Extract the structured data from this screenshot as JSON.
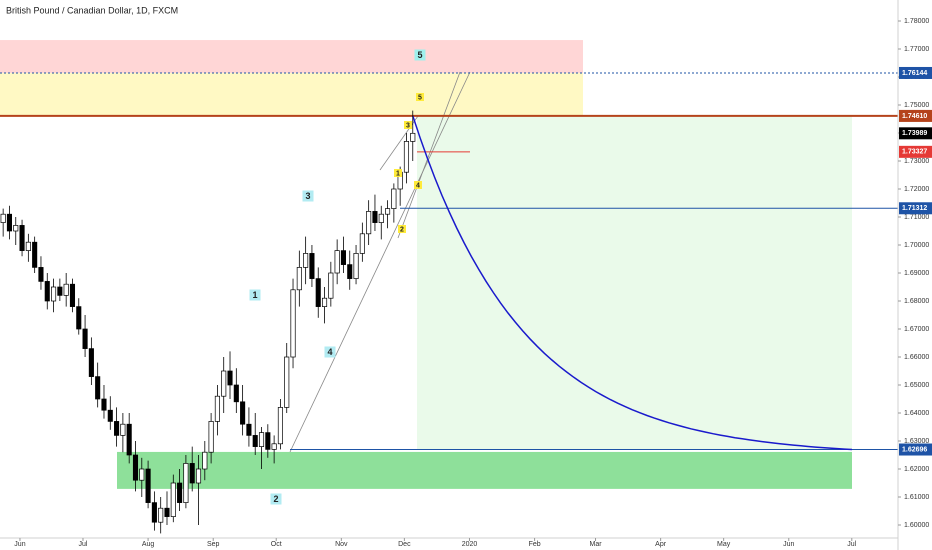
{
  "chart_data": {
    "type": "candlestick",
    "title": "British Pound / Canadian Dollar, 1D, FXCM",
    "x": [
      -8,
      -5,
      -2,
      1,
      4,
      7,
      10,
      13,
      16,
      19,
      22,
      25,
      28,
      31,
      34,
      37,
      40,
      43,
      46,
      49,
      52,
      55,
      58,
      61,
      64,
      67,
      70,
      73,
      76,
      79,
      82,
      85,
      88,
      91,
      94,
      97,
      100,
      103,
      106,
      109,
      112,
      115,
      118,
      121,
      124,
      127,
      130,
      133,
      136,
      139,
      142,
      145,
      148,
      151,
      154,
      157,
      160,
      163,
      166,
      169,
      172,
      175,
      178,
      181,
      184,
      187
    ],
    "open": [
      1.708,
      1.711,
      1.705,
      1.707,
      1.698,
      1.701,
      1.692,
      1.687,
      1.68,
      1.685,
      1.682,
      1.686,
      1.678,
      1.67,
      1.663,
      1.653,
      1.645,
      1.641,
      1.637,
      1.632,
      1.636,
      1.625,
      1.616,
      1.62,
      1.608,
      1.601,
      1.606,
      1.603,
      1.615,
      1.608,
      1.622,
      1.615,
      1.62,
      1.626,
      1.637,
      1.646,
      1.655,
      1.65,
      1.644,
      1.636,
      1.632,
      1.628,
      1.633,
      1.627,
      1.629,
      1.642,
      1.66,
      1.684,
      1.692,
      1.697,
      1.688,
      1.678,
      1.681,
      1.69,
      1.698,
      1.693,
      1.688,
      1.697,
      1.704,
      1.712,
      1.708,
      1.711,
      1.713,
      1.72,
      1.726,
      1.737
    ],
    "high": [
      1.713,
      1.714,
      1.71,
      1.709,
      1.704,
      1.703,
      1.696,
      1.69,
      1.688,
      1.688,
      1.69,
      1.688,
      1.681,
      1.675,
      1.667,
      1.658,
      1.65,
      1.646,
      1.642,
      1.64,
      1.64,
      1.63,
      1.624,
      1.623,
      1.612,
      1.61,
      1.612,
      1.618,
      1.62,
      1.625,
      1.628,
      1.625,
      1.63,
      1.64,
      1.65,
      1.66,
      1.662,
      1.656,
      1.65,
      1.642,
      1.64,
      1.635,
      1.636,
      1.632,
      1.645,
      1.665,
      1.688,
      1.698,
      1.703,
      1.7,
      1.692,
      1.685,
      1.694,
      1.702,
      1.703,
      1.698,
      1.7,
      1.708,
      1.716,
      1.718,
      1.714,
      1.716,
      1.722,
      1.728,
      1.74,
      1.748
    ],
    "low": [
      1.703,
      1.702,
      1.7,
      1.696,
      1.694,
      1.69,
      1.684,
      1.677,
      1.676,
      1.68,
      1.678,
      1.676,
      1.668,
      1.66,
      1.65,
      1.642,
      1.638,
      1.634,
      1.628,
      1.626,
      1.622,
      1.612,
      1.61,
      1.606,
      1.598,
      1.597,
      1.6,
      1.601,
      1.605,
      1.606,
      1.612,
      1.6,
      1.616,
      1.622,
      1.632,
      1.64,
      1.645,
      1.64,
      1.632,
      1.628,
      1.625,
      1.62,
      1.624,
      1.622,
      1.627,
      1.64,
      1.656,
      1.678,
      1.686,
      1.685,
      1.674,
      1.672,
      1.678,
      1.686,
      1.69,
      1.684,
      1.686,
      1.694,
      1.7,
      1.705,
      1.702,
      1.706,
      1.708,
      1.714,
      1.722,
      1.73
    ],
    "close": [
      1.711,
      1.705,
      1.707,
      1.698,
      1.701,
      1.692,
      1.687,
      1.68,
      1.685,
      1.682,
      1.686,
      1.678,
      1.67,
      1.663,
      1.653,
      1.645,
      1.641,
      1.637,
      1.632,
      1.636,
      1.625,
      1.616,
      1.62,
      1.608,
      1.601,
      1.606,
      1.603,
      1.615,
      1.608,
      1.622,
      1.615,
      1.62,
      1.626,
      1.637,
      1.646,
      1.655,
      1.65,
      1.644,
      1.636,
      1.632,
      1.628,
      1.633,
      1.627,
      1.629,
      1.642,
      1.66,
      1.684,
      1.692,
      1.697,
      1.688,
      1.678,
      1.681,
      1.69,
      1.698,
      1.693,
      1.688,
      1.697,
      1.704,
      1.712,
      1.708,
      1.711,
      1.713,
      1.72,
      1.726,
      1.737,
      1.73989
    ],
    "xlim": [
      -9.5,
      418
    ],
    "xticks": [
      {
        "value": 0,
        "label": "Jun"
      },
      {
        "value": 30,
        "label": "Jul"
      },
      {
        "value": 61,
        "label": "Aug"
      },
      {
        "value": 92,
        "label": "Sep"
      },
      {
        "value": 122,
        "label": "Oct"
      },
      {
        "value": 153,
        "label": "Nov"
      },
      {
        "value": 183,
        "label": "Dec"
      },
      {
        "value": 214,
        "label": "2020"
      },
      {
        "value": 245,
        "label": "Feb"
      },
      {
        "value": 274,
        "label": "Mar"
      },
      {
        "value": 305,
        "label": "Apr"
      },
      {
        "value": 335,
        "label": "May"
      },
      {
        "value": 366,
        "label": "Jun"
      },
      {
        "value": 396,
        "label": "Jul"
      }
    ],
    "ylim": [
      1.59536,
      1.7875
    ],
    "yticks": [
      {
        "value": 1.6,
        "label": "1.60000"
      },
      {
        "value": 1.61,
        "label": "1.61000"
      },
      {
        "value": 1.62,
        "label": "1.62000"
      },
      {
        "value": 1.63,
        "label": "1.63000"
      },
      {
        "value": 1.64,
        "label": "1.64000"
      },
      {
        "value": 1.65,
        "label": "1.65000"
      },
      {
        "value": 1.66,
        "label": "1.66000"
      },
      {
        "value": 1.67,
        "label": "1.67000"
      },
      {
        "value": 1.68,
        "label": "1.68000"
      },
      {
        "value": 1.69,
        "label": "1.69000"
      },
      {
        "value": 1.7,
        "label": "1.70000"
      },
      {
        "value": 1.71,
        "label": "1.71000"
      },
      {
        "value": 1.72,
        "label": "1.72000"
      },
      {
        "value": 1.73,
        "label": "1.73000"
      },
      {
        "value": 1.74,
        "label": "1.74000"
      },
      {
        "value": 1.75,
        "label": "1.75000"
      },
      {
        "value": 1.76,
        "label": "1.76000"
      },
      {
        "value": 1.77,
        "label": "1.77000"
      },
      {
        "value": 1.78,
        "label": "1.78000"
      }
    ],
    "zones": [
      {
        "from": 1.7614,
        "to": 1.7732,
        "color": "#ffd6d6"
      },
      {
        "from": 1.7461,
        "to": 1.7614,
        "color": "#fff9c4"
      },
      {
        "from": 1.6129,
        "to": 1.6261,
        "color": "#8ee09a"
      },
      {
        "from": 1.62696,
        "to": 1.7461,
        "color": "#eafaea"
      }
    ],
    "levels": [
      {
        "value": 1.76144,
        "color": "#1e53a6"
      },
      {
        "value": 1.7461,
        "label": "1.74610",
        "color": "#b5431b"
      },
      {
        "value": 1.73989,
        "color": "#000000"
      },
      {
        "value": 1.73327,
        "color": "#e53935"
      },
      {
        "value": 1.71312,
        "color": "#1e53a6"
      },
      {
        "value": 1.62696,
        "color": "#1e53a6"
      }
    ],
    "annotations": [
      "5",
      "5",
      "3",
      "1",
      "4",
      "2",
      "3",
      "1",
      "4",
      "2"
    ]
  }
}
